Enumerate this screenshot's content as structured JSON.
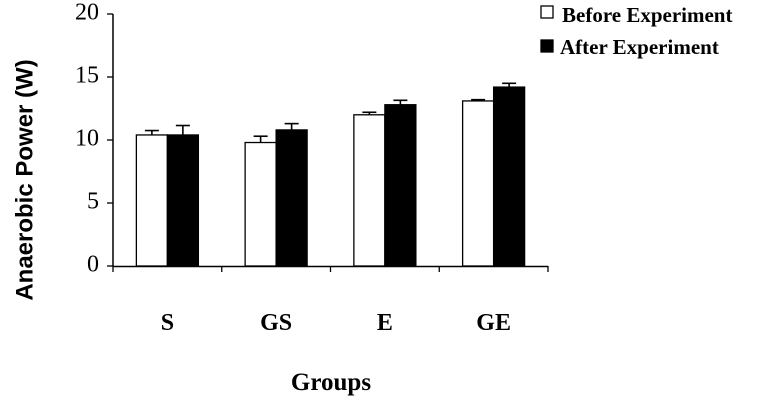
{
  "chart_data": {
    "type": "bar",
    "title": "",
    "xlabel": "Groups",
    "ylabel": "Anaerobic Power (W)",
    "categories": [
      "S",
      "GS",
      "E",
      "GE"
    ],
    "ylim": [
      0,
      20
    ],
    "yticks": [
      0,
      5,
      10,
      15,
      20
    ],
    "grid": false,
    "legend_position": "top-right",
    "series": [
      {
        "name": "Before Experiment",
        "values": [
          10.4,
          9.8,
          12.0,
          13.1
        ],
        "errors": [
          0.35,
          0.5,
          0.2,
          0.1
        ],
        "color": "#ffffff"
      },
      {
        "name": "After Experiment",
        "values": [
          10.4,
          10.8,
          12.8,
          14.2
        ],
        "errors": [
          0.75,
          0.5,
          0.35,
          0.3
        ],
        "color": "#000000"
      }
    ]
  }
}
